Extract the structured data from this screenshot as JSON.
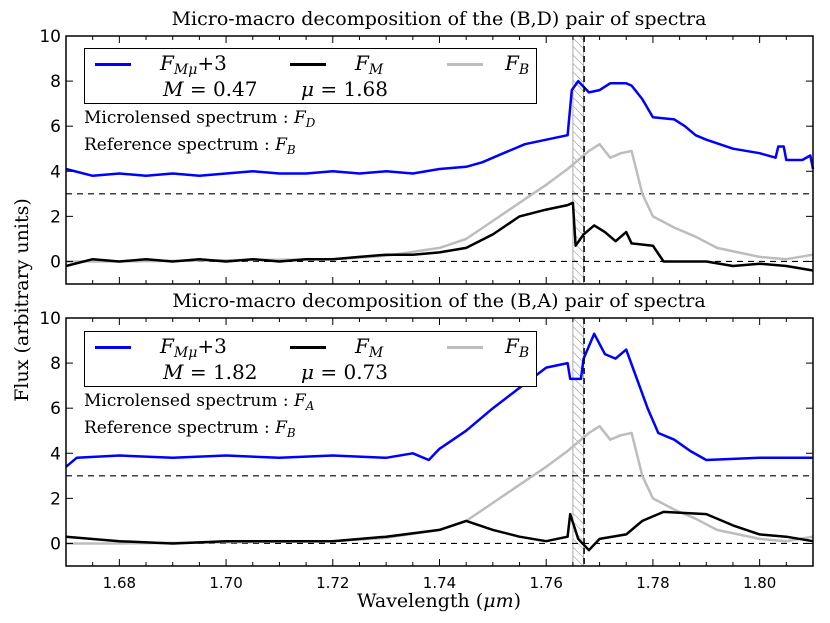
{
  "chart_data": [
    {
      "type": "line",
      "title": "Micro-macro decomposition of the (B,D) pair of spectra",
      "xlabel": "Wavelength (μm)",
      "ylabel": "Flux (arbitrary units)",
      "xlim": [
        1.67,
        1.81
      ],
      "ylim": [
        -1,
        10
      ],
      "xticks": [
        "1.68",
        "1.70",
        "1.72",
        "1.74",
        "1.76",
        "1.78",
        "1.80"
      ],
      "yticks": [
        "0",
        "2",
        "4",
        "6",
        "8",
        "10"
      ],
      "legend": {
        "placement": "top-left",
        "entries": [
          {
            "base": "F",
            "sub": "Mμ",
            "suffix": "+3",
            "color": "#0000ff"
          },
          {
            "base": "F",
            "sub": "M",
            "suffix": "",
            "color": "#000000"
          },
          {
            "base": "F",
            "sub": "B",
            "suffix": "",
            "color": "#bdbdbd"
          }
        ],
        "params": {
          "M_label": "M",
          "M_value": "= 0.47",
          "mu_label": "μ",
          "mu_value": "= 1.68"
        }
      },
      "annotations": {
        "microlensed": "Microlensed spectrum : ",
        "microlensed_sub": "D",
        "reference": "Reference spectrum : ",
        "reference_sub": "B"
      },
      "hlines": [
        3,
        0
      ],
      "vline": 1.7671,
      "hatched_band": [
        1.765,
        1.767
      ],
      "series": [
        {
          "key": "FMmu_plus_3",
          "color": "#0000ff",
          "x": [
            1.67,
            1.675,
            1.68,
            1.685,
            1.69,
            1.695,
            1.7,
            1.705,
            1.71,
            1.715,
            1.72,
            1.725,
            1.73,
            1.735,
            1.74,
            1.745,
            1.748,
            1.752,
            1.756,
            1.76,
            1.764,
            1.7648,
            1.766,
            1.768,
            1.77,
            1.772,
            1.775,
            1.776,
            1.778,
            1.78,
            1.784,
            1.786,
            1.788,
            1.79,
            1.795,
            1.8,
            1.803,
            1.8035,
            1.8045,
            1.805,
            1.808,
            1.8095,
            1.81
          ],
          "y": [
            4.1,
            3.8,
            3.9,
            3.8,
            3.9,
            3.8,
            3.9,
            4.0,
            3.9,
            3.9,
            4.0,
            3.9,
            4.0,
            3.9,
            4.1,
            4.2,
            4.4,
            4.8,
            5.2,
            5.4,
            5.6,
            7.6,
            8.0,
            7.5,
            7.6,
            7.9,
            7.9,
            7.8,
            7.2,
            6.4,
            6.3,
            6.0,
            5.6,
            5.4,
            5.0,
            4.8,
            4.6,
            5.1,
            5.1,
            4.5,
            4.5,
            4.7,
            4.1
          ]
        },
        {
          "key": "FM",
          "color": "#000000",
          "x": [
            1.67,
            1.675,
            1.68,
            1.685,
            1.69,
            1.695,
            1.7,
            1.705,
            1.71,
            1.715,
            1.72,
            1.725,
            1.73,
            1.735,
            1.74,
            1.745,
            1.75,
            1.755,
            1.76,
            1.764,
            1.765,
            1.7655,
            1.767,
            1.769,
            1.771,
            1.773,
            1.775,
            1.776,
            1.78,
            1.782,
            1.79,
            1.795,
            1.8,
            1.805,
            1.81
          ],
          "y": [
            -0.2,
            0.1,
            0.0,
            0.1,
            0.0,
            0.1,
            0.0,
            0.1,
            0.0,
            0.1,
            0.1,
            0.2,
            0.3,
            0.3,
            0.4,
            0.6,
            1.2,
            2.0,
            2.3,
            2.5,
            2.6,
            0.7,
            1.2,
            1.6,
            1.3,
            0.9,
            1.3,
            0.8,
            0.7,
            0.0,
            0.0,
            -0.2,
            -0.1,
            -0.2,
            -0.4
          ]
        },
        {
          "key": "FB",
          "color": "#bdbdbd",
          "x": [
            1.67,
            1.68,
            1.7,
            1.72,
            1.73,
            1.74,
            1.745,
            1.75,
            1.755,
            1.76,
            1.764,
            1.766,
            1.768,
            1.77,
            1.772,
            1.774,
            1.776,
            1.778,
            1.78,
            1.784,
            1.788,
            1.792,
            1.796,
            1.8,
            1.805,
            1.81
          ],
          "y": [
            0.0,
            0.0,
            0.05,
            0.1,
            0.25,
            0.6,
            1.0,
            1.8,
            2.6,
            3.4,
            4.1,
            4.5,
            4.9,
            5.2,
            4.6,
            4.8,
            4.9,
            3.0,
            2.0,
            1.5,
            1.1,
            0.6,
            0.4,
            0.2,
            0.1,
            0.3
          ]
        }
      ]
    },
    {
      "type": "line",
      "title": "Micro-macro decomposition of the (B,A) pair of spectra",
      "xlabel": "Wavelength (μm)",
      "ylabel": "Flux (arbitrary units)",
      "xlim": [
        1.67,
        1.81
      ],
      "ylim": [
        -1,
        10
      ],
      "xticks": [
        "1.68",
        "1.70",
        "1.72",
        "1.74",
        "1.76",
        "1.78",
        "1.80"
      ],
      "yticks": [
        "0",
        "2",
        "4",
        "6",
        "8",
        "10"
      ],
      "legend": {
        "placement": "top-left",
        "entries": [
          {
            "base": "F",
            "sub": "Mμ",
            "suffix": "+3",
            "color": "#0000ff"
          },
          {
            "base": "F",
            "sub": "M",
            "suffix": "",
            "color": "#000000"
          },
          {
            "base": "F",
            "sub": "B",
            "suffix": "",
            "color": "#bdbdbd"
          }
        ],
        "params": {
          "M_label": "M",
          "M_value": "= 1.82",
          "mu_label": "μ",
          "mu_value": "= 0.73"
        }
      },
      "annotations": {
        "microlensed": "Microlensed spectrum : ",
        "microlensed_sub": "A",
        "reference": "Reference spectrum : ",
        "reference_sub": "B"
      },
      "hlines": [
        3,
        0
      ],
      "vline": 1.7671,
      "hatched_band": [
        1.765,
        1.767
      ],
      "series": [
        {
          "key": "FMmu_plus_3",
          "color": "#0000ff",
          "x": [
            1.67,
            1.672,
            1.68,
            1.69,
            1.7,
            1.71,
            1.72,
            1.73,
            1.735,
            1.738,
            1.74,
            1.745,
            1.75,
            1.755,
            1.76,
            1.764,
            1.7645,
            1.7665,
            1.767,
            1.769,
            1.771,
            1.773,
            1.775,
            1.777,
            1.779,
            1.781,
            1.784,
            1.787,
            1.79,
            1.8,
            1.81
          ],
          "y": [
            3.4,
            3.8,
            3.9,
            3.8,
            3.9,
            3.8,
            3.9,
            3.8,
            4.0,
            3.7,
            4.2,
            5.0,
            6.0,
            6.9,
            7.8,
            8.0,
            7.3,
            7.3,
            8.2,
            9.3,
            8.4,
            8.2,
            8.6,
            7.3,
            6.0,
            4.9,
            4.6,
            4.1,
            3.7,
            3.8,
            3.8
          ]
        },
        {
          "key": "FM",
          "color": "#000000",
          "x": [
            1.67,
            1.68,
            1.69,
            1.7,
            1.71,
            1.72,
            1.73,
            1.74,
            1.745,
            1.75,
            1.755,
            1.76,
            1.764,
            1.7645,
            1.766,
            1.768,
            1.77,
            1.775,
            1.778,
            1.782,
            1.79,
            1.795,
            1.8,
            1.805,
            1.81
          ],
          "y": [
            0.3,
            0.1,
            0.0,
            0.1,
            0.1,
            0.1,
            0.3,
            0.6,
            1.0,
            0.6,
            0.3,
            0.1,
            0.3,
            1.3,
            0.2,
            -0.3,
            0.2,
            0.4,
            1.0,
            1.4,
            1.3,
            0.8,
            0.4,
            0.3,
            0.1
          ]
        },
        {
          "key": "FB",
          "color": "#bdbdbd",
          "x": [
            1.67,
            1.68,
            1.7,
            1.72,
            1.73,
            1.74,
            1.745,
            1.75,
            1.755,
            1.76,
            1.764,
            1.766,
            1.768,
            1.77,
            1.772,
            1.774,
            1.776,
            1.778,
            1.78,
            1.784,
            1.788,
            1.792,
            1.796,
            1.8,
            1.805,
            1.81
          ],
          "y": [
            0.0,
            0.0,
            0.05,
            0.1,
            0.25,
            0.6,
            1.0,
            1.8,
            2.6,
            3.4,
            4.1,
            4.5,
            4.9,
            5.2,
            4.6,
            4.8,
            4.9,
            3.0,
            2.0,
            1.5,
            1.1,
            0.6,
            0.4,
            0.2,
            0.1,
            0.3
          ]
        }
      ]
    }
  ],
  "shared": {
    "ylabel": "Flux (arbitrary units)",
    "xlabel_text": "Wavelength (",
    "xlabel_unit": "μm",
    "xlabel_close": ")"
  }
}
